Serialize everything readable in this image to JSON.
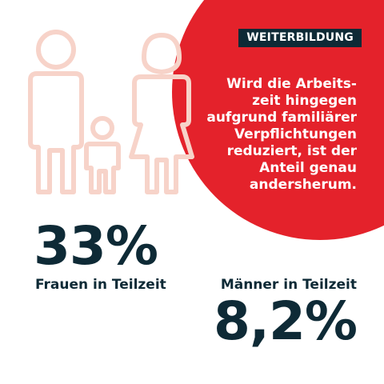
{
  "badge": "WEITERBILDUNG",
  "quote": "Wird die Arbeits-\nzeit hingegen\naufgrund familiärer\nVerpflichtungen\nreduziert, ist der\nAnteil genau\nandersherum.",
  "women": {
    "value": "33%",
    "label": "Frauen in Teilzeit"
  },
  "men": {
    "value": "8,2%",
    "label": "Männer in Teilzeit"
  },
  "colors": {
    "accent_red": "#e4222b",
    "dark_navy": "#0e2a36",
    "icon_outline": "#f7d3c9"
  },
  "icons": [
    "family-icon",
    "man-icon",
    "child-icon",
    "woman-icon"
  ]
}
